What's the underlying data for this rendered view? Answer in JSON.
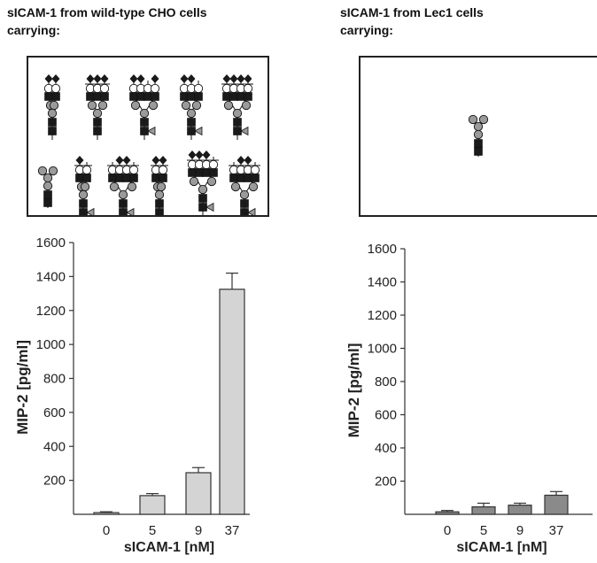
{
  "panels": [
    {
      "title_line1": "sICAM-1 from wild-type CHO cells",
      "title_line2": "carrying:"
    },
    {
      "title_line1": "sICAM-1 from Lec1 cells",
      "title_line2": "carrying:"
    }
  ],
  "glycan_legend": {
    "symbol_colors": {
      "mannose": "#9a9a9a",
      "galactose": "#ffffff",
      "glcnac": "#1a1a1a",
      "sialic_acid": "#1a1a1a",
      "fucose": "#9a9a9a"
    }
  },
  "chart_data": [
    {
      "type": "bar",
      "categories": [
        "0",
        "5",
        "9",
        "37"
      ],
      "values": [
        10,
        110,
        245,
        1325
      ],
      "errors": [
        5,
        12,
        30,
        95
      ],
      "bar_color": "#d4d4d4",
      "title": "",
      "xlabel": "sICAM-1 [nM]",
      "ylabel": "MIP-2 [pg/ml]",
      "ylim": [
        0,
        1600
      ],
      "yticks": [
        "200",
        "400",
        "600",
        "800",
        "1000",
        "1200",
        "1400",
        "1600"
      ]
    },
    {
      "type": "bar",
      "categories": [
        "0",
        "5",
        "9",
        "37"
      ],
      "values": [
        15,
        45,
        55,
        115
      ],
      "errors": [
        8,
        22,
        12,
        22
      ],
      "bar_color": "#8a8a8a",
      "title": "",
      "xlabel": "sICAM-1 [nM]",
      "ylabel": "MIP-2 [pg/ml]",
      "ylim": [
        0,
        1600
      ],
      "yticks": [
        "200",
        "400",
        "600",
        "800",
        "1000",
        "1200",
        "1400",
        "1600"
      ]
    }
  ]
}
